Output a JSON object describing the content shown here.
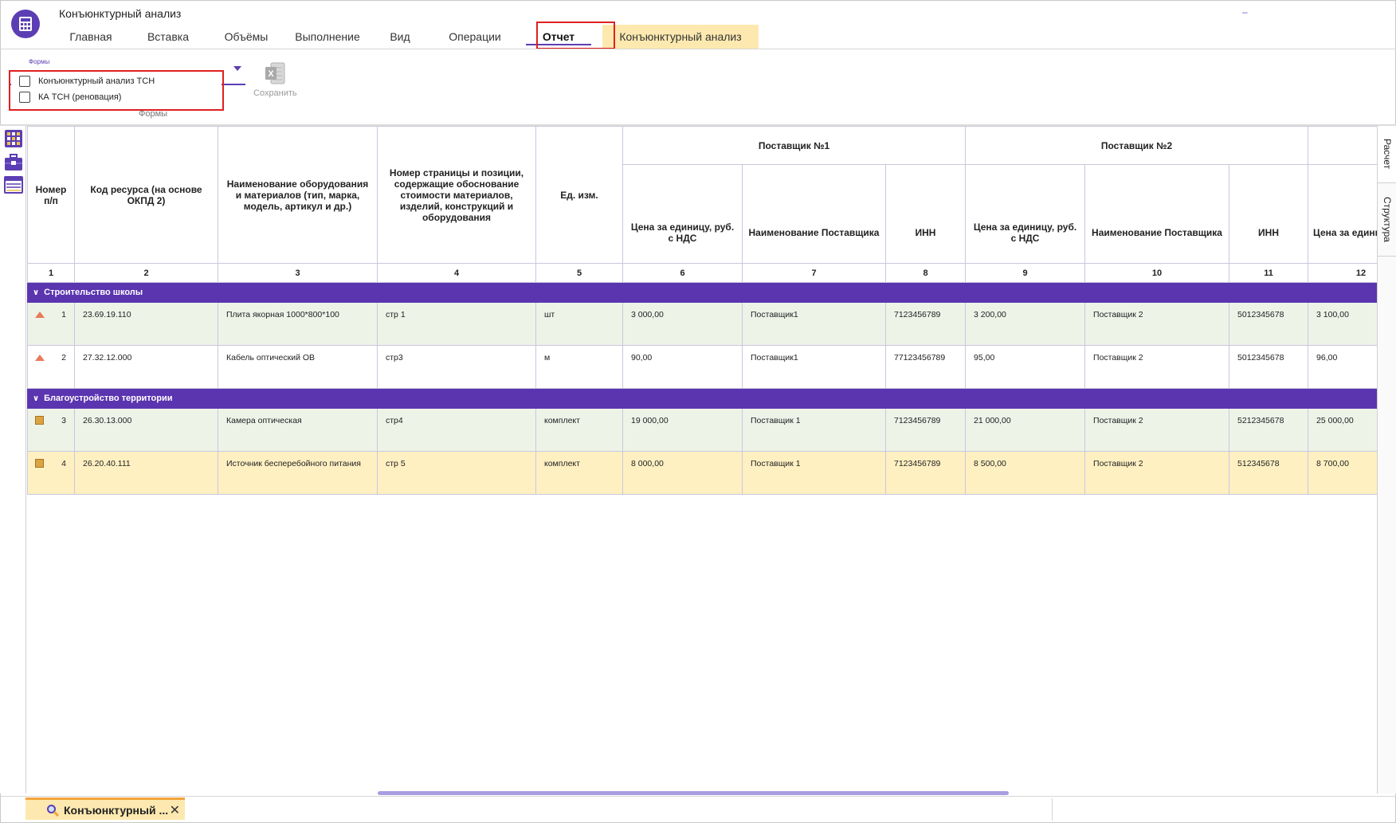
{
  "app": {
    "title": "Конъюнктурный анализ",
    "title_dash": "–"
  },
  "tabs": [
    {
      "label": "Главная"
    },
    {
      "label": "Вставка"
    },
    {
      "label": "Объёмы"
    },
    {
      "label": "Выполнение"
    },
    {
      "label": "Вид"
    },
    {
      "label": "Операции"
    },
    {
      "label": "Отчет"
    },
    {
      "label": "Конъюнктурный анализ"
    }
  ],
  "ribbon": {
    "forms_caption": "Формы",
    "forms_options": [
      {
        "label": "Конъюнктурный анализ ТСН",
        "checked": false
      },
      {
        "label": "КА ТСН (реновация)",
        "checked": false
      }
    ],
    "forms_group_label": "Формы",
    "save_label": "Сохранить"
  },
  "right_tabs": [
    "Расчет",
    "Структура"
  ],
  "table": {
    "group_headers": [
      "Поставщик №1",
      "Поставщик №2"
    ],
    "columns": [
      "Номер п/п",
      "Код ресурса (на основе ОКПД 2)",
      "Наименование оборудования и материалов (тип, марка, модель, артикул и др.)",
      "Номер страницы и позиции, содержащие обоснование стоимости материалов, изделий, конструкций и оборудования",
      "Ед. изм.",
      "Цена за единицу, руб. с НДС",
      "Наименование Поставщика",
      "ИНН",
      "Цена за единицу, руб. с НДС",
      "Наименование Поставщика",
      "ИНН",
      "Цена за единицу, руб. с НДС"
    ],
    "column_numbers": [
      "1",
      "2",
      "3",
      "4",
      "5",
      "6",
      "7",
      "8",
      "9",
      "10",
      "11",
      "12"
    ],
    "groups": [
      {
        "title": "Строительство школы",
        "rows": [
          {
            "icon": "warning-triangle-icon",
            "style": "green",
            "cells": [
              "1",
              "23.69.19.110",
              "Плита якорная 1000*800*100",
              "стр 1",
              "шт",
              "3 000,00",
              "Поставщик1",
              "7123456789",
              "3 200,00",
              "Поставщик 2",
              "5012345678",
              "3 100,00"
            ]
          },
          {
            "icon": "warning-triangle-icon",
            "style": "white",
            "cells": [
              "2",
              "27.32.12.000",
              "Кабель оптический ОВ",
              "стр3",
              "м",
              "90,00",
              "Поставщик1",
              "77123456789",
              "95,00",
              "Поставщик 2",
              "5012345678",
              "96,00"
            ]
          }
        ]
      },
      {
        "title": "Благоустройство территории",
        "rows": [
          {
            "icon": "package-icon",
            "style": "green",
            "cells": [
              "3",
              "26.30.13.000",
              "Камера оптическая",
              "стр4",
              "комплект",
              "19 000,00",
              "Поставщик 1",
              "7123456789",
              "21 000,00",
              "Поставщик 2",
              "5212345678",
              "25 000,00"
            ]
          },
          {
            "icon": "package-icon",
            "style": "yellow",
            "cells": [
              "4",
              "26.20.40.111",
              "Источник бесперебойного питания",
              "стр 5",
              "комплект",
              "8 000,00",
              "Поставщик 1",
              "7123456789",
              "8 500,00",
              "Поставщик 2",
              "512345678",
              "8 700,00"
            ]
          }
        ]
      }
    ]
  },
  "doc_tab": {
    "label": "Конъюнктурный ...",
    "close": "✕"
  }
}
